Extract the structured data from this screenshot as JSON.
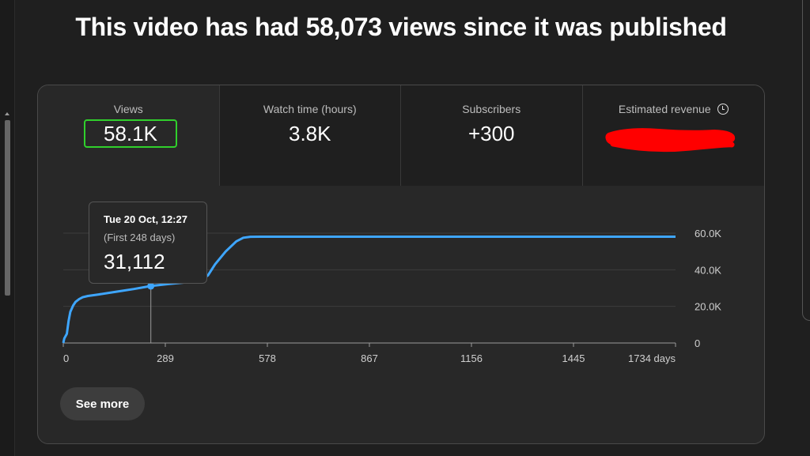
{
  "headline": "This video has had 58,073 views since it was published",
  "metrics": [
    {
      "label": "Views",
      "value": "58.1K"
    },
    {
      "label": "Watch time (hours)",
      "value": "3.8K"
    },
    {
      "label": "Subscribers",
      "value": "+300"
    },
    {
      "label": "Estimated revenue",
      "icon": "clock-icon"
    }
  ],
  "tooltip": {
    "date": "Tue 20 Oct, 12:27",
    "range": "(First 248 days)",
    "value": "31,112"
  },
  "see_more_label": "See more",
  "colors": {
    "accent": "#3ea6ff",
    "highlight_border": "#30d02c",
    "redaction": "#ff0000"
  },
  "chart_data": {
    "type": "line",
    "x_tick_labels": [
      "0",
      "289",
      "578",
      "867",
      "1156",
      "1445",
      "1734 days"
    ],
    "x_ticks": [
      0,
      289,
      578,
      867,
      1156,
      1445,
      1734
    ],
    "y_tick_labels": [
      "0",
      "20.0K",
      "40.0K",
      "60.0K"
    ],
    "y_ticks": [
      0,
      20000,
      40000,
      60000
    ],
    "xlim": [
      0,
      1734
    ],
    "ylim": [
      0,
      60000
    ],
    "grid": true,
    "highlight": {
      "x": 248,
      "y": 31112
    },
    "x": [
      0,
      3,
      10,
      15,
      20,
      28,
      35,
      45,
      55,
      70,
      100,
      150,
      200,
      248,
      300,
      350,
      390,
      410,
      430,
      460,
      490,
      510,
      530,
      560,
      600,
      800,
      1200,
      1600,
      1734
    ],
    "y": [
      0,
      2500,
      5000,
      12000,
      17000,
      20500,
      22500,
      24000,
      25000,
      25700,
      26500,
      28000,
      29500,
      31112,
      32300,
      33200,
      34200,
      37000,
      43000,
      50000,
      55500,
      57500,
      58000,
      58050,
      58060,
      58070,
      58073,
      58073,
      58073
    ]
  }
}
